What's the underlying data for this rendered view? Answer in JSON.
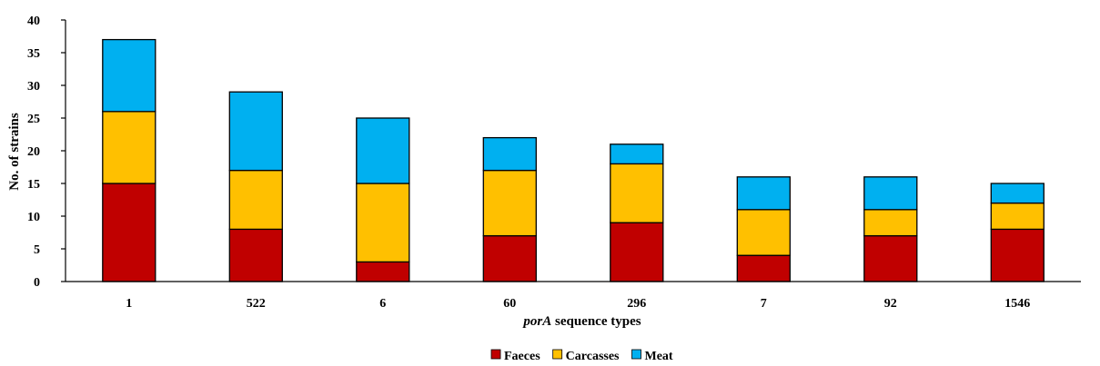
{
  "chart_data": {
    "type": "bar",
    "stacked": true,
    "categories": [
      "1",
      "522",
      "6",
      "60",
      "296",
      "7",
      "92",
      "1546"
    ],
    "series": [
      {
        "name": "Faeces",
        "color": "#C00000",
        "values": [
          15,
          8,
          3,
          7,
          9,
          4,
          7,
          8
        ]
      },
      {
        "name": "Carcasses",
        "color": "#FFC000",
        "values": [
          11,
          9,
          12,
          10,
          9,
          7,
          4,
          4
        ]
      },
      {
        "name": "Meat",
        "color": "#00B0F0",
        "values": [
          11,
          12,
          10,
          5,
          3,
          5,
          5,
          3
        ]
      }
    ],
    "xlabel": {
      "italic_part": "porA",
      "rest": " sequence types"
    },
    "ylabel": "No. of strains",
    "ylim": [
      0,
      40
    ],
    "yticks": [
      0,
      5,
      10,
      15,
      20,
      25,
      30,
      35,
      40
    ],
    "grid": false,
    "legend_position": "bottom-center"
  }
}
